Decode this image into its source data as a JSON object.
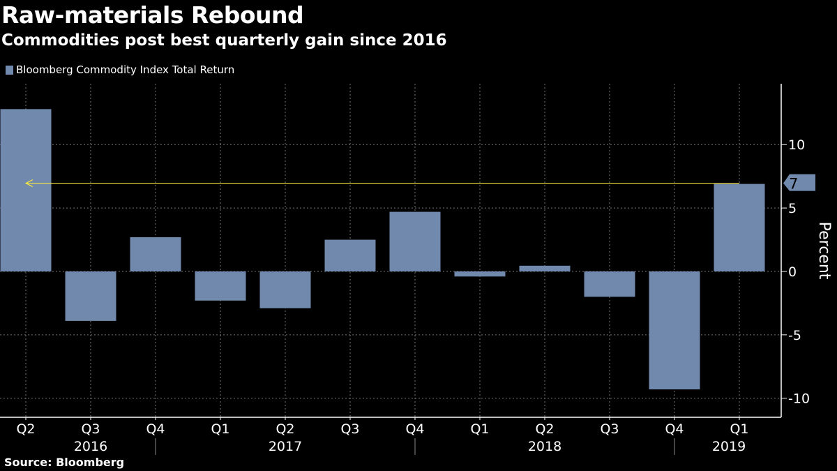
{
  "chart_data": {
    "type": "bar",
    "title": "Raw-materials Rebound",
    "subtitle": "Commodities post best quarterly gain since 2016",
    "source": "Source: Bloomberg",
    "ylabel": "Percent",
    "xlabel": "",
    "ylim": [
      -11.5,
      14.8
    ],
    "yticks": [
      -10,
      -5,
      0,
      5,
      10
    ],
    "grid": true,
    "legend_position": "top-left",
    "categories": [
      "Q2",
      "Q3",
      "Q4",
      "Q1",
      "Q2",
      "Q3",
      "Q4",
      "Q1",
      "Q2",
      "Q3",
      "Q4",
      "Q1"
    ],
    "years": [
      {
        "label": "2016",
        "from": 0,
        "to": 2
      },
      {
        "label": "2017",
        "from": 3,
        "to": 6
      },
      {
        "label": "2018",
        "from": 7,
        "to": 10
      },
      {
        "label": "2019",
        "from": 11,
        "to": 11
      }
    ],
    "series": [
      {
        "name": "Bloomberg Commodity Index Total Return",
        "color": "#7089ad",
        "values": [
          12.8,
          -3.9,
          2.7,
          -2.3,
          -2.9,
          2.5,
          4.7,
          -0.4,
          0.45,
          -2.0,
          -9.3,
          6.9
        ]
      }
    ],
    "annotation": {
      "label": "7",
      "value": 6.9,
      "line_color": "#f5e642"
    }
  }
}
